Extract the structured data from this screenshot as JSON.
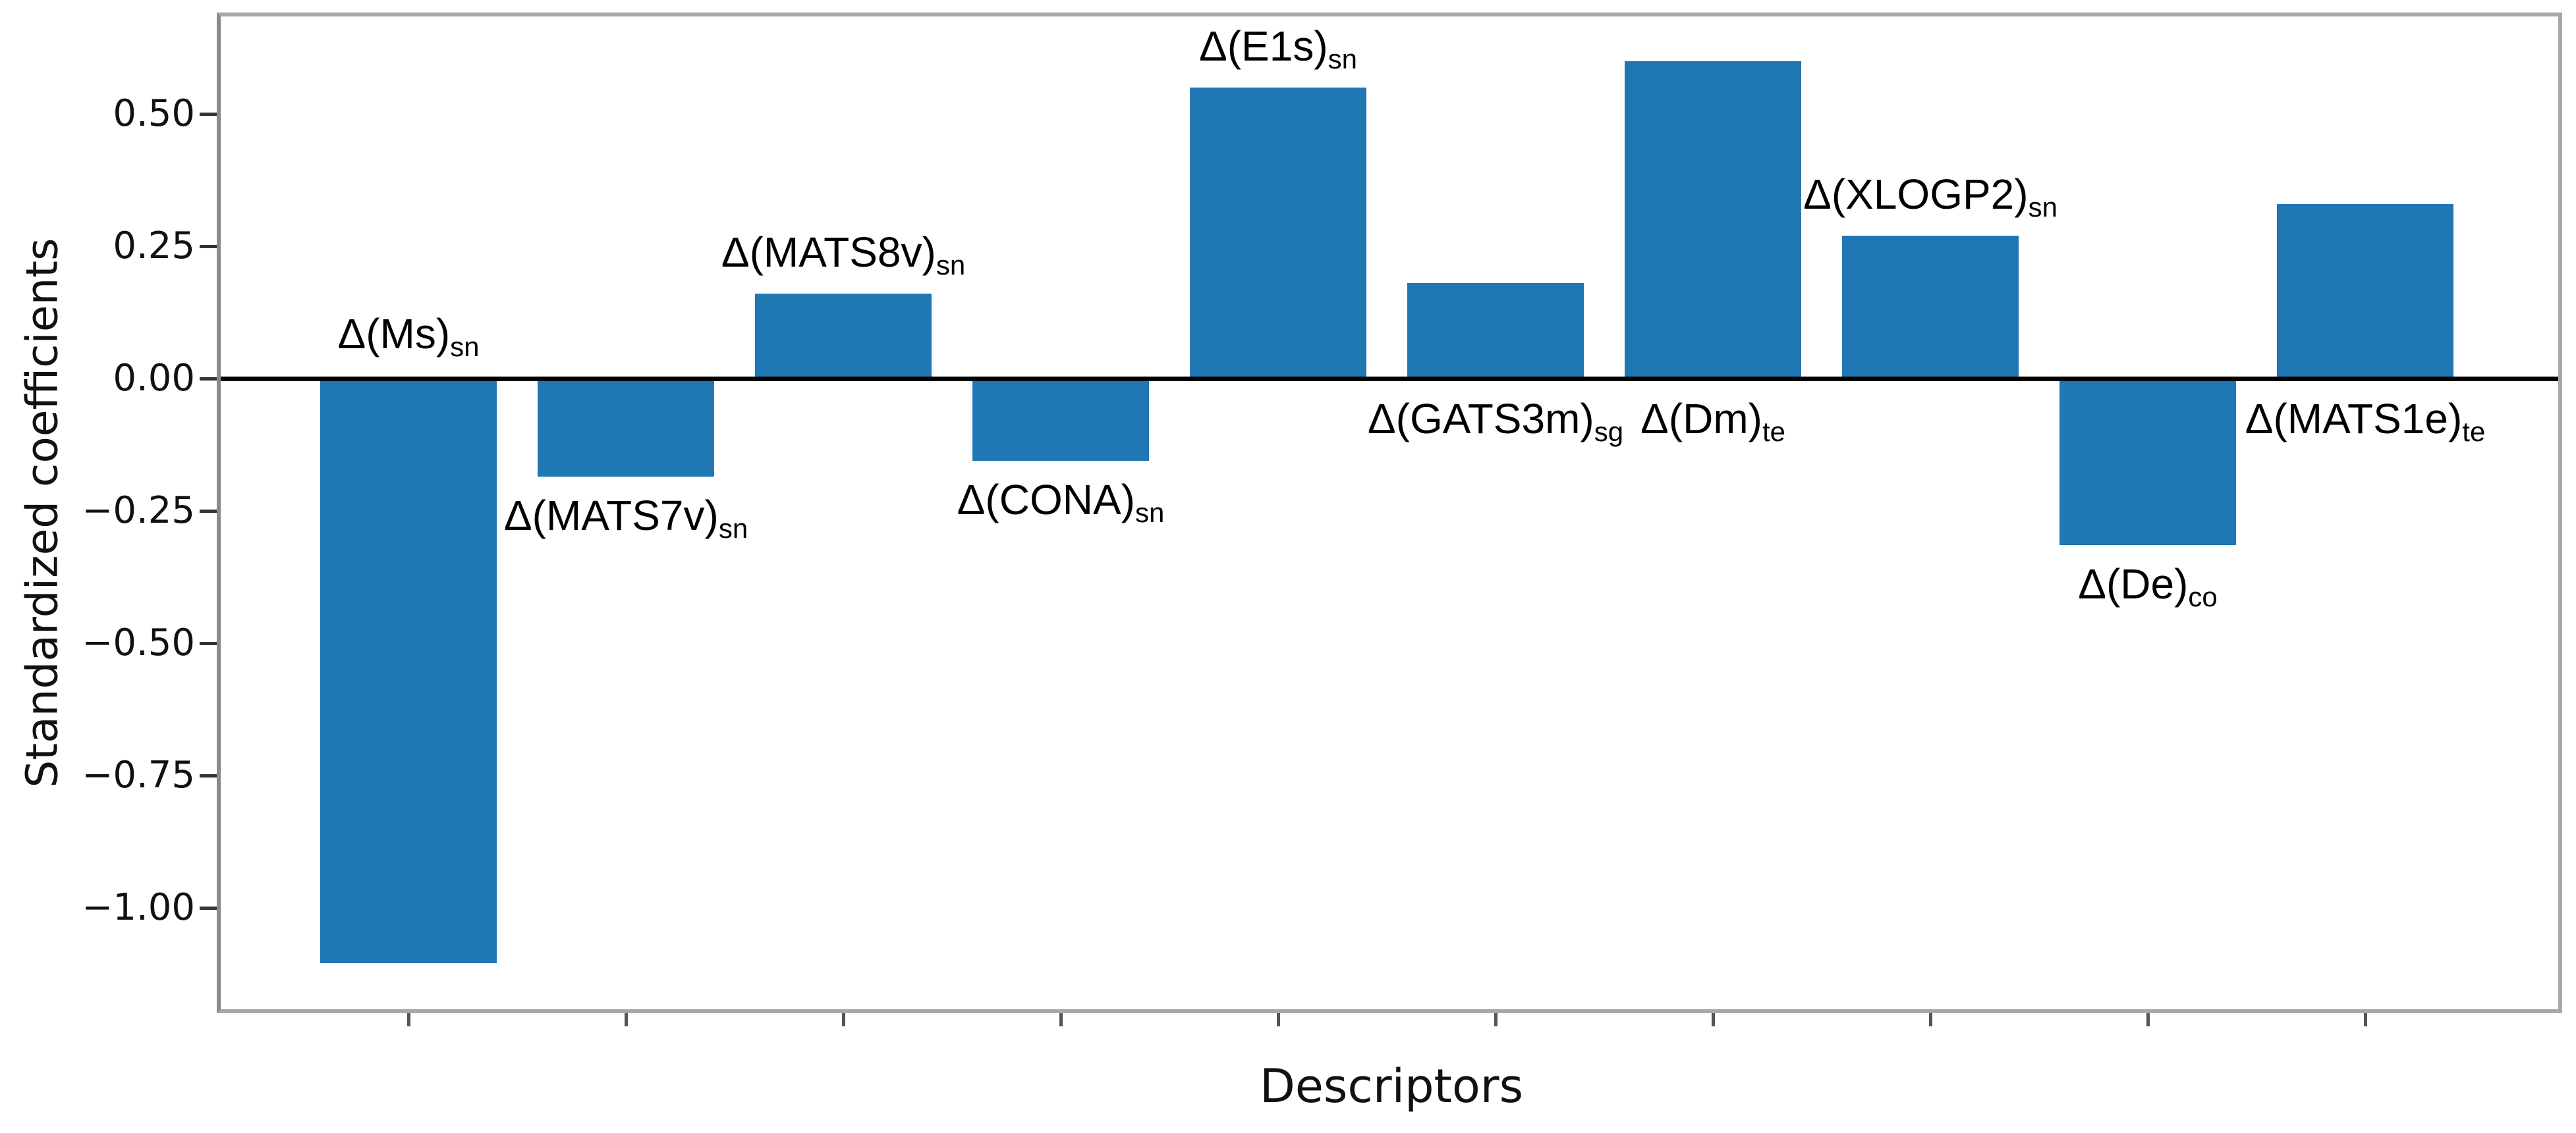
{
  "figure": {
    "background_color": "#ffffff",
    "plot_border_color": "#a8a8a8",
    "zero_line_color": "#000000",
    "tick_color": "#333333",
    "text_color": "#111111"
  },
  "chart_data": {
    "type": "bar",
    "title": "",
    "xlabel": "Descriptors",
    "ylabel": "Standardized coefficients",
    "grid": "off",
    "legend": "none",
    "ylim": [
      -1.19,
      0.68
    ],
    "bar_color": "#1f77b4",
    "y_ticks": [
      {
        "label": "0.50",
        "value": 0.5
      },
      {
        "label": "0.25",
        "value": 0.25
      },
      {
        "label": "0.00",
        "value": 0.0
      },
      {
        "label": "−0.25",
        "value": -0.25
      },
      {
        "label": "−0.50",
        "value": -0.5
      },
      {
        "label": "−0.75",
        "value": -0.75
      },
      {
        "label": "−1.00",
        "value": -1.0
      }
    ],
    "bars": [
      {
        "label_base": "Δ(Ms)",
        "label_sub": "sn",
        "value": -1.1,
        "label_placement": "above-zero"
      },
      {
        "label_base": "Δ(MATS7v)",
        "label_sub": "sn",
        "value": -0.18,
        "label_placement": "below-bar"
      },
      {
        "label_base": "Δ(MATS8v)",
        "label_sub": "sn",
        "value": 0.16,
        "label_placement": "above-bar"
      },
      {
        "label_base": "Δ(CONA)",
        "label_sub": "sn",
        "value": -0.15,
        "label_placement": "below-bar"
      },
      {
        "label_base": "Δ(E1s)",
        "label_sub": "sn",
        "value": 0.55,
        "label_placement": "above-bar"
      },
      {
        "label_base": "Δ(GATS3m)",
        "label_sub": "sg",
        "value": 0.18,
        "label_placement": "below-zero"
      },
      {
        "label_base": "Δ(Dm)",
        "label_sub": "te",
        "value": 0.6,
        "label_placement": "below-zero"
      },
      {
        "label_base": "Δ(XLOGP2)",
        "label_sub": "sn",
        "value": 0.27,
        "label_placement": "above-bar"
      },
      {
        "label_base": "Δ(De)",
        "label_sub": "co",
        "value": -0.31,
        "label_placement": "below-bar"
      },
      {
        "label_base": "Δ(MATS1e)",
        "label_sub": "te",
        "value": 0.33,
        "label_placement": "below-zero"
      }
    ]
  }
}
